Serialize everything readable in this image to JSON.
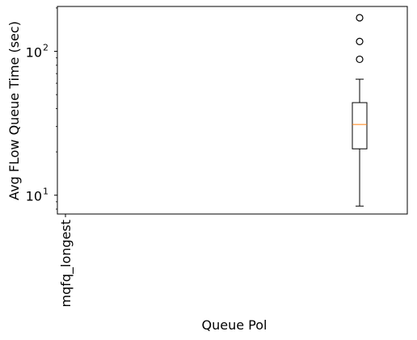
{
  "chart_data": {
    "type": "box",
    "yscale": "log",
    "ylim": [
      7.4,
      205
    ],
    "yticks": [
      {
        "value": 10,
        "label": "10",
        "exp": "1"
      },
      {
        "value": 100,
        "label": "10",
        "exp": "2"
      }
    ],
    "xlabel": "Queue Pol",
    "ylabel": "Avg FLow Queue Time (sec)",
    "categories": [
      "mqfq_longest"
    ],
    "boxes": [
      {
        "name": "",
        "whisker_low": 8.4,
        "q1": 21,
        "median": 31,
        "q3": 44,
        "whisker_high": 64,
        "fliers": [
          88,
          117,
          171
        ]
      }
    ],
    "colors": {
      "box": "#000000",
      "median": "#ff7f0e",
      "flier": "#000000"
    }
  }
}
